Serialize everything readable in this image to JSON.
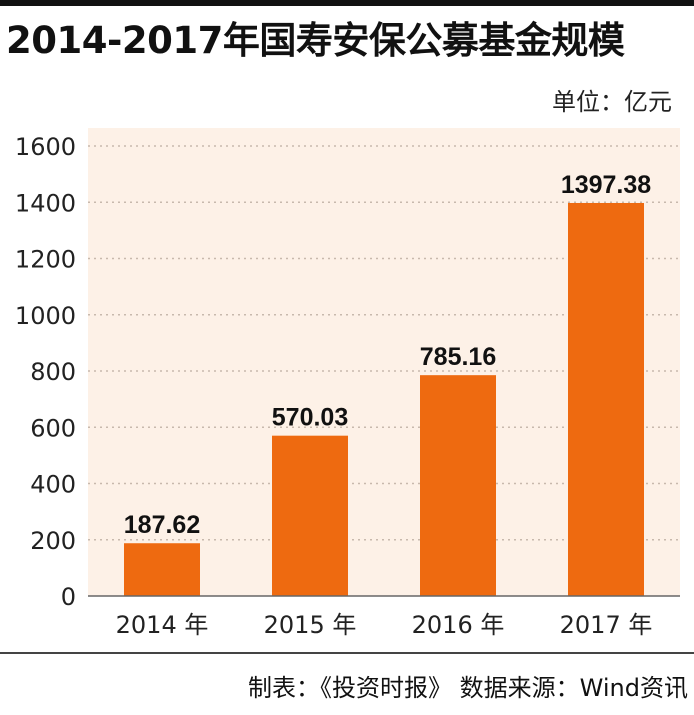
{
  "title": "2014-2017年国寿安保公募基金规模",
  "unit": "单位：亿元",
  "source": "制表：《投资时报》 数据来源：Wind资讯",
  "colors": {
    "bar": "#ee6a10",
    "plot_bg": "#fdf1e7",
    "grid": "#c8b9ad"
  },
  "chart_data": {
    "type": "bar",
    "categories": [
      "2014 年",
      "2015 年",
      "2016 年",
      "2017 年"
    ],
    "values": [
      187.62,
      570.03,
      785.16,
      1397.38
    ],
    "value_labels": [
      "187.62",
      "570.03",
      "785.16",
      "1397.38"
    ],
    "title": "2014-2017年国寿安保公募基金规模",
    "ylim": [
      0,
      1600
    ],
    "yticks": [
      "0",
      "200",
      "400",
      "600",
      "800",
      "1000",
      "1200",
      "1400",
      "1600"
    ],
    "grid": true
  }
}
